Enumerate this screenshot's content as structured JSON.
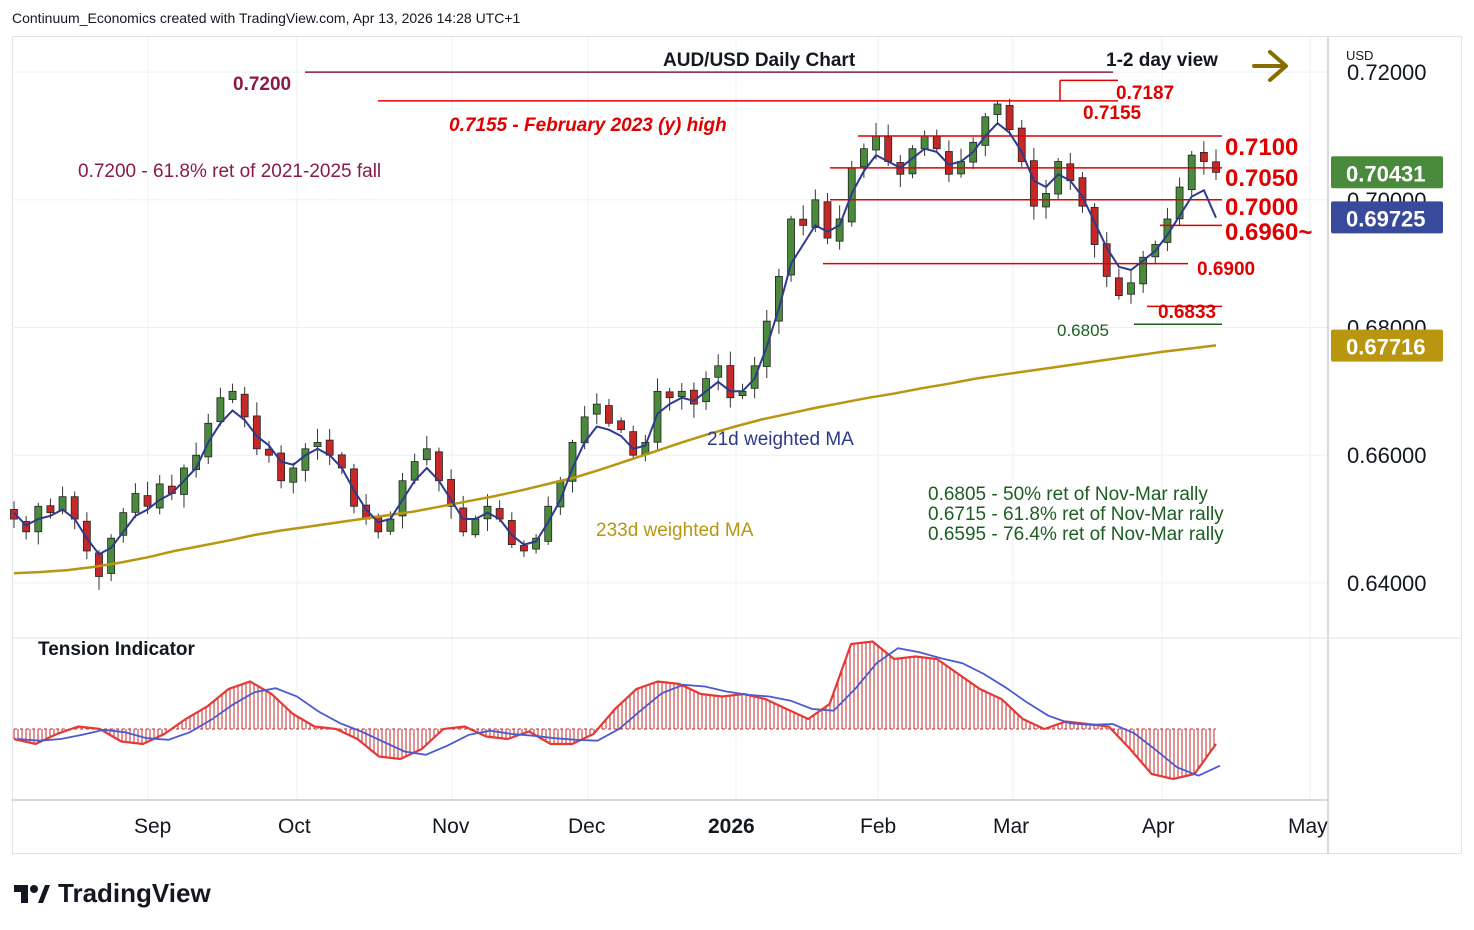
{
  "header": {
    "attribution": "Continuum_Economics created with TradingView.com, Apr 13, 2026 14:28 UTC+1"
  },
  "brand": {
    "name": "TradingView",
    "logo_icon": "tradingview-logo-icon"
  },
  "colors": {
    "up": "#4a8a3c",
    "down": "#c62828",
    "support": "#1b5e20",
    "resistance": "#e00000",
    "ma21": "#2e3a8c",
    "ma233": "#b8960f",
    "arrow": "#8a6d00",
    "label_maroon": "#8b1a4a"
  },
  "chart_data": [
    {
      "type": "candlestick",
      "title": "AUD/USD Daily Chart",
      "subtitle": "1-2 day view",
      "currency": "USD",
      "x_ticks": [
        "Sep",
        "Oct",
        "Nov",
        "Dec",
        "2026",
        "Feb",
        "Mar",
        "Apr",
        "May"
      ],
      "y_ticks": [
        "0.72000",
        "0.70000",
        "0.68000",
        "0.66000",
        "0.64000"
      ],
      "ylim": [
        0.6345,
        0.7255
      ],
      "price_badges": [
        {
          "label": "0.70431",
          "value": 0.70431,
          "color": "#4a8a3c"
        },
        {
          "label": "0.69725",
          "value": 0.69725,
          "color": "#3a4a9a"
        },
        {
          "label": "0.67716",
          "value": 0.67716,
          "color": "#b8960f"
        }
      ],
      "resistance_levels": [
        {
          "label": "0.7187",
          "value": 0.7187
        },
        {
          "label": "0.7155",
          "value": 0.7155
        },
        {
          "label": "0.7100",
          "value": 0.71
        },
        {
          "label": "0.7050",
          "value": 0.705
        },
        {
          "label": "0.7000",
          "value": 0.7
        },
        {
          "label": "0.6960~",
          "value": 0.696
        },
        {
          "label": "0.6900",
          "value": 0.69
        },
        {
          "label": "0.6833",
          "value": 0.6833
        }
      ],
      "support_level": {
        "label": "0.6805",
        "value": 0.6805
      },
      "long_level": {
        "label": "0.7200",
        "value": 0.72
      },
      "annotations": {
        "feb2023": "0.7155 - February 2023 (y) high",
        "fib_note": "0.7200 - 61.8% ret of 2021-2025 fall",
        "ma21": "21d weighted MA",
        "ma233": "233d weighted MA",
        "fib_lines": [
          "0.6805 - 50% ret of Nov-Mar rally",
          "0.6715 - 61.8% ret of Nov-Mar rally",
          "0.6595 - 76.4% ret of Nov-Mar rally"
        ]
      },
      "close_path": [
        0.65,
        0.648,
        0.652,
        0.651,
        0.6535,
        0.65,
        0.645,
        0.641,
        0.647,
        0.651,
        0.654,
        0.652,
        0.6555,
        0.654,
        0.658,
        0.66,
        0.665,
        0.669,
        0.67,
        0.666,
        0.661,
        0.66,
        0.656,
        0.658,
        0.661,
        0.662,
        0.66,
        0.658,
        0.652,
        0.65,
        0.648,
        0.65,
        0.656,
        0.659,
        0.661,
        0.656,
        0.652,
        0.648,
        0.65,
        0.652,
        0.65,
        0.646,
        0.645,
        0.647,
        0.652,
        0.656,
        0.662,
        0.666,
        0.668,
        0.665,
        0.664,
        0.66,
        0.662,
        0.67,
        0.669,
        0.67,
        0.668,
        0.672,
        0.674,
        0.669,
        0.67,
        0.674,
        0.681,
        0.688,
        0.697,
        0.696,
        0.7,
        0.694,
        0.697,
        0.705,
        0.708,
        0.71,
        0.706,
        0.704,
        0.708,
        0.71,
        0.708,
        0.704,
        0.706,
        0.709,
        0.713,
        0.715,
        0.711,
        0.706,
        0.699,
        0.701,
        0.706,
        0.703,
        0.699,
        0.693,
        0.688,
        0.685,
        0.687,
        0.691,
        0.693,
        0.697,
        0.702,
        0.707,
        0.706,
        0.7043
      ],
      "ma21_path": [
        0.651,
        0.649,
        0.65,
        0.6505,
        0.6515,
        0.65,
        0.647,
        0.6445,
        0.6455,
        0.648,
        0.6505,
        0.6515,
        0.653,
        0.654,
        0.656,
        0.658,
        0.662,
        0.665,
        0.667,
        0.6655,
        0.663,
        0.6615,
        0.659,
        0.6585,
        0.66,
        0.661,
        0.66,
        0.658,
        0.6545,
        0.6515,
        0.6495,
        0.65,
        0.653,
        0.656,
        0.658,
        0.656,
        0.653,
        0.65,
        0.65,
        0.651,
        0.65,
        0.6475,
        0.646,
        0.6465,
        0.6495,
        0.653,
        0.658,
        0.662,
        0.6645,
        0.664,
        0.663,
        0.661,
        0.6615,
        0.6665,
        0.668,
        0.669,
        0.6685,
        0.67,
        0.6715,
        0.67,
        0.67,
        0.672,
        0.677,
        0.683,
        0.69,
        0.693,
        0.696,
        0.695,
        0.696,
        0.701,
        0.7045,
        0.707,
        0.706,
        0.705,
        0.7065,
        0.708,
        0.7075,
        0.7055,
        0.706,
        0.7075,
        0.71,
        0.712,
        0.7105,
        0.7075,
        0.703,
        0.702,
        0.704,
        0.703,
        0.7005,
        0.6965,
        0.6925,
        0.6895,
        0.689,
        0.6905,
        0.692,
        0.6945,
        0.6975,
        0.7005,
        0.7015,
        0.6972
      ],
      "ma233_path": [
        0.6415,
        0.6417,
        0.642,
        0.6425,
        0.6432,
        0.644,
        0.645,
        0.6458,
        0.6466,
        0.6475,
        0.6482,
        0.6488,
        0.6494,
        0.65,
        0.6506,
        0.6512,
        0.652,
        0.6528,
        0.6536,
        0.6545,
        0.6555,
        0.6565,
        0.6578,
        0.6592,
        0.6606,
        0.662,
        0.6633,
        0.6645,
        0.6656,
        0.6665,
        0.6674,
        0.6682,
        0.669,
        0.6697,
        0.6705,
        0.6712,
        0.672,
        0.6726,
        0.6732,
        0.6738,
        0.6744,
        0.675,
        0.6756,
        0.6762,
        0.6767,
        0.6772
      ],
      "tension_indicator": {
        "label": "Tension Indicator",
        "values": [
          -0.2,
          -0.3,
          -0.1,
          0.05,
          0.0,
          -0.25,
          -0.3,
          -0.1,
          0.2,
          0.45,
          0.8,
          0.95,
          0.7,
          0.3,
          0.05,
          0.0,
          -0.2,
          -0.55,
          -0.6,
          -0.4,
          0.0,
          0.05,
          -0.15,
          -0.2,
          -0.05,
          -0.3,
          -0.3,
          -0.1,
          0.4,
          0.8,
          0.95,
          0.9,
          0.7,
          0.65,
          0.7,
          0.6,
          0.4,
          0.2,
          0.5,
          1.7,
          1.75,
          1.4,
          1.45,
          1.4,
          1.1,
          0.8,
          0.6,
          0.2,
          0.0,
          0.15,
          0.1,
          0.05,
          -0.4,
          -0.9,
          -1.0,
          -0.9,
          -0.3
        ]
      }
    }
  ]
}
